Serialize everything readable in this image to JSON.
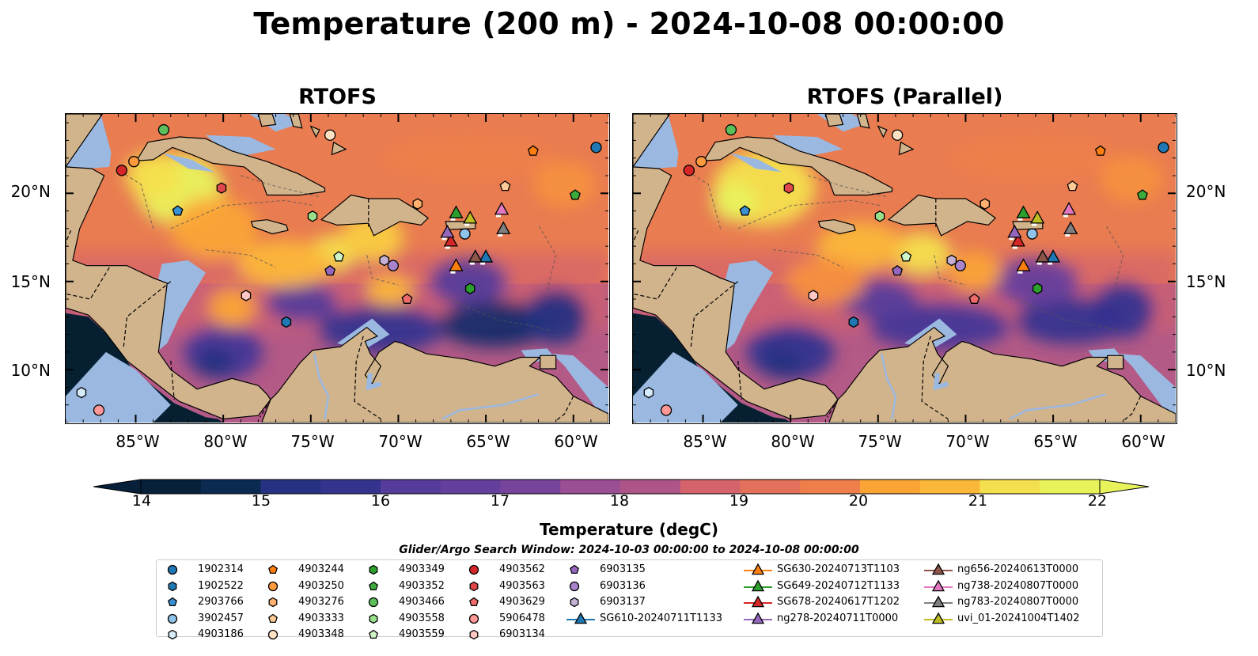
{
  "title": "Temperature (200 m) - 2024-10-08 00:00:00",
  "panels": [
    {
      "title": "RTOFS"
    },
    {
      "title": "RTOFS (Parallel)"
    }
  ],
  "lat_ticks": [
    "20°N",
    "15°N",
    "10°N"
  ],
  "lon_ticks": [
    "85°W",
    "80°W",
    "75°W",
    "70°W",
    "65°W",
    "60°W"
  ],
  "colorbar": {
    "label": "Temperature (degC)",
    "min": 14,
    "max": 22,
    "ticks": [
      "14",
      "15",
      "16",
      "17",
      "18",
      "19",
      "20",
      "21",
      "22"
    ],
    "colors": [
      "#06203a",
      "#0b2a52",
      "#172d6b",
      "#253181",
      "#34348f",
      "#443797",
      "#553c9a",
      "#653f9c",
      "#76449a",
      "#88489a",
      "#9a4e94",
      "#ad5489",
      "#c1597b",
      "#d4636c",
      "#e2705b",
      "#ee7f4b",
      "#f6903e",
      "#faa436",
      "#fbb73a",
      "#f9cc41",
      "#f4e04e",
      "#e8f35c"
    ]
  },
  "legend": {
    "title": "Glider/Argo Search Window: 2024-10-03 00:00:00 to 2024-10-08 00:00:00",
    "argo": [
      {
        "label": "1902314",
        "shape": "circle",
        "color": "#1f77b4"
      },
      {
        "label": "1902522",
        "shape": "hexagon",
        "color": "#1f77b4"
      },
      {
        "label": "2903766",
        "shape": "pentagon",
        "color": "#3a8fd0"
      },
      {
        "label": "3902457",
        "shape": "circle",
        "color": "#8fc3ea"
      },
      {
        "label": "4903186",
        "shape": "hexagon",
        "color": "#d6ecfa"
      },
      {
        "label": "4903244",
        "shape": "pentagon",
        "color": "#ff7f0e"
      },
      {
        "label": "4903250",
        "shape": "circle",
        "color": "#ff9a3c"
      },
      {
        "label": "4903276",
        "shape": "hexagon",
        "color": "#ffb170"
      },
      {
        "label": "4903333",
        "shape": "pentagon",
        "color": "#ffcb96"
      },
      {
        "label": "4903348",
        "shape": "circle",
        "color": "#ffe2c4"
      },
      {
        "label": "4903349",
        "shape": "hexagon",
        "color": "#2ca02c"
      },
      {
        "label": "4903352",
        "shape": "pentagon",
        "color": "#3cab3c"
      },
      {
        "label": "4903466",
        "shape": "circle",
        "color": "#5bc05b"
      },
      {
        "label": "4903558",
        "shape": "hexagon",
        "color": "#98df8a"
      },
      {
        "label": "4903559",
        "shape": "pentagon",
        "color": "#cff5c7"
      },
      {
        "label": "4903562",
        "shape": "circle",
        "color": "#d62728"
      },
      {
        "label": "4903563",
        "shape": "hexagon",
        "color": "#e0474a"
      },
      {
        "label": "4903629",
        "shape": "pentagon",
        "color": "#ef6a6a"
      },
      {
        "label": "5906478",
        "shape": "circle",
        "color": "#ff9896"
      },
      {
        "label": "6903134",
        "shape": "hexagon",
        "color": "#ffc6c4"
      },
      {
        "label": "6903135",
        "shape": "pentagon",
        "color": "#9467bd"
      },
      {
        "label": "6903136",
        "shape": "circle",
        "color": "#a984cc"
      },
      {
        "label": "6903137",
        "shape": "hexagon",
        "color": "#c5b0d5"
      }
    ],
    "gliders": [
      {
        "label": "SG610-20240711T1133",
        "color": "#1f77b4"
      },
      {
        "label": "SG630-20240713T1103",
        "color": "#ff7f0e"
      },
      {
        "label": "SG649-20240712T1133",
        "color": "#2ca02c"
      },
      {
        "label": "SG678-20240617T1202",
        "color": "#d62728"
      },
      {
        "label": "ng278-20240711T0000",
        "color": "#9467bd"
      },
      {
        "label": "ng656-20240613T0000",
        "color": "#8c564b"
      },
      {
        "label": "ng738-20240807T0000",
        "color": "#e377c2"
      },
      {
        "label": "ng783-20240807T0000",
        "color": "#7f7f7f"
      },
      {
        "label": "uvi_01-20241004T1402",
        "color": "#bcbd22"
      }
    ]
  },
  "map": {
    "extent_lon": [
      -89,
      -58
    ],
    "extent_lat": [
      7,
      24.5
    ],
    "land_color": "#d2b48c",
    "shelf_color": "#9ab8e0",
    "argo_positions": [
      {
        "label": "1902314",
        "lon": -58.7,
        "lat": 22.6
      },
      {
        "label": "2903766",
        "lon": -82.6,
        "lat": 19.0
      },
      {
        "label": "3902457",
        "lon": -66.2,
        "lat": 17.7
      },
      {
        "label": "4903186",
        "lon": -88.1,
        "lat": 8.7
      },
      {
        "label": "4903244",
        "lon": -62.3,
        "lat": 22.4
      },
      {
        "label": "4903250",
        "lon": -85.1,
        "lat": 21.8
      },
      {
        "label": "4903276",
        "lon": -68.9,
        "lat": 19.4
      },
      {
        "label": "4903333",
        "lon": -63.9,
        "lat": 20.4
      },
      {
        "label": "4903348",
        "lon": -73.9,
        "lat": 23.3
      },
      {
        "label": "4903349",
        "lon": -65.9,
        "lat": 14.6
      },
      {
        "label": "4903352",
        "lon": -59.9,
        "lat": 19.9
      },
      {
        "label": "4903466",
        "lon": -83.4,
        "lat": 23.6
      },
      {
        "label": "4903558",
        "lon": -74.9,
        "lat": 18.7
      },
      {
        "label": "4903559",
        "lon": -73.4,
        "lat": 16.4
      },
      {
        "label": "4903562",
        "lon": -85.8,
        "lat": 21.3
      },
      {
        "label": "4903563",
        "lon": -80.1,
        "lat": 20.3
      },
      {
        "label": "4903629",
        "lon": -69.5,
        "lat": 14.0
      },
      {
        "label": "5906478",
        "lon": -87.1,
        "lat": 7.7
      },
      {
        "label": "6903134",
        "lon": -78.7,
        "lat": 14.2
      },
      {
        "label": "6903135",
        "lon": -73.9,
        "lat": 15.6
      },
      {
        "label": "6903136",
        "lon": -70.3,
        "lat": 15.9
      },
      {
        "label": "6903137",
        "lon": -70.8,
        "lat": 16.2
      },
      {
        "label": "1902522",
        "lon": -76.4,
        "lat": 12.7
      }
    ],
    "glider_positions": [
      {
        "label": "SG610-20240711T1133",
        "lon": -65.0,
        "lat": 16.4
      },
      {
        "label": "SG630-20240713T1103",
        "lon": -66.7,
        "lat": 15.9
      },
      {
        "label": "SG649-20240712T1133",
        "lon": -66.7,
        "lat": 18.9
      },
      {
        "label": "SG678-20240617T1202",
        "lon": -67.0,
        "lat": 17.3
      },
      {
        "label": "ng278-20240711T0000",
        "lon": -67.2,
        "lat": 17.8
      },
      {
        "label": "ng656-20240613T0000",
        "lon": -65.6,
        "lat": 16.4
      },
      {
        "label": "ng738-20240807T0000",
        "lon": -64.1,
        "lat": 19.1
      },
      {
        "label": "ng783-20240807T0000",
        "lon": -64.0,
        "lat": 18.0
      },
      {
        "label": "uvi_01-20241004T1402",
        "lon": -65.9,
        "lat": 18.6
      }
    ]
  }
}
